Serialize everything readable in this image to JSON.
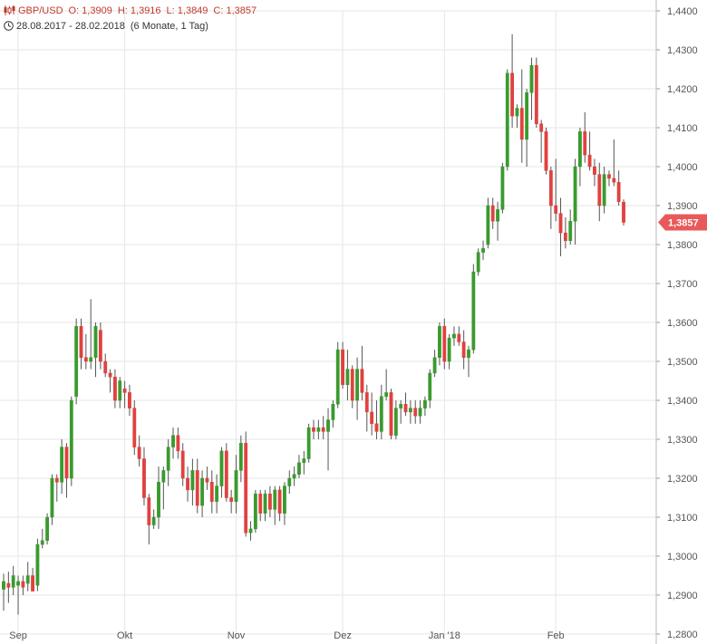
{
  "header": {
    "symbol": "GBP/USD",
    "open": "O: 1,3909",
    "high": "H: 1,3916",
    "low": "L: 1,3849",
    "close": "C: 1,3857",
    "range": "28.08.2017 - 28.02.2018",
    "period": "(6 Monate, 1 Tag)"
  },
  "colors": {
    "up": "#3a9a2e",
    "down": "#e0413f",
    "grid": "#e6e6e6",
    "last": "#e85a5a"
  },
  "chart_data": {
    "type": "candlestick",
    "ylim": [
      1.28,
      1.44
    ],
    "y_ticks": [
      "1,4400",
      "1,4300",
      "1,4200",
      "1,4100",
      "1,4000",
      "1,3900",
      "1,3800",
      "1,3700",
      "1,3600",
      "1,3500",
      "1,3400",
      "1,3300",
      "1,3200",
      "1,3100",
      "1,3000",
      "1,2900",
      "1,2800"
    ],
    "x_ticks": [
      {
        "label": "Sep",
        "index": 3
      },
      {
        "label": "Okt",
        "index": 25
      },
      {
        "label": "Nov",
        "index": 48
      },
      {
        "label": "Dez",
        "index": 70
      },
      {
        "label": "Jan '18",
        "index": 91
      },
      {
        "label": "Feb",
        "index": 114
      }
    ],
    "last_price": "1,3857",
    "last_value": 1.3857,
    "ohlc": [
      [
        1.2915,
        1.2955,
        1.286,
        1.2935
      ],
      [
        1.293,
        1.296,
        1.288,
        1.292
      ],
      [
        1.292,
        1.2975,
        1.29,
        1.295
      ],
      [
        1.2925,
        1.295,
        1.285,
        1.2935
      ],
      [
        1.2935,
        1.295,
        1.29,
        1.292
      ],
      [
        1.293,
        1.2985,
        1.291,
        1.295
      ],
      [
        1.295,
        1.297,
        1.292,
        1.291
      ],
      [
        1.2925,
        1.3045,
        1.291,
        1.303
      ],
      [
        1.303,
        1.307,
        1.302,
        1.304
      ],
      [
        1.304,
        1.311,
        1.303,
        1.31
      ],
      [
        1.31,
        1.321,
        1.308,
        1.32
      ],
      [
        1.32,
        1.321,
        1.314,
        1.319
      ],
      [
        1.319,
        1.33,
        1.316,
        1.328
      ],
      [
        1.328,
        1.329,
        1.315,
        1.32
      ],
      [
        1.32,
        1.341,
        1.318,
        1.34
      ],
      [
        1.341,
        1.361,
        1.339,
        1.359
      ],
      [
        1.359,
        1.361,
        1.348,
        1.351
      ],
      [
        1.351,
        1.357,
        1.348,
        1.35
      ],
      [
        1.35,
        1.366,
        1.348,
        1.351
      ],
      [
        1.351,
        1.36,
        1.346,
        1.359
      ],
      [
        1.358,
        1.36,
        1.348,
        1.35
      ],
      [
        1.35,
        1.352,
        1.346,
        1.347
      ],
      [
        1.347,
        1.348,
        1.342,
        1.346
      ],
      [
        1.346,
        1.348,
        1.338,
        1.34
      ],
      [
        1.34,
        1.346,
        1.338,
        1.345
      ],
      [
        1.343,
        1.345,
        1.338,
        1.342
      ],
      [
        1.342,
        1.344,
        1.336,
        1.338
      ],
      [
        1.338,
        1.34,
        1.326,
        1.328
      ],
      [
        1.328,
        1.331,
        1.323,
        1.325
      ],
      [
        1.325,
        1.328,
        1.313,
        1.315
      ],
      [
        1.315,
        1.316,
        1.303,
        1.308
      ],
      [
        1.308,
        1.312,
        1.307,
        1.31
      ],
      [
        1.31,
        1.323,
        1.307,
        1.319
      ],
      [
        1.319,
        1.323,
        1.312,
        1.322
      ],
      [
        1.322,
        1.33,
        1.318,
        1.328
      ],
      [
        1.328,
        1.333,
        1.325,
        1.331
      ],
      [
        1.331,
        1.333,
        1.325,
        1.327
      ],
      [
        1.327,
        1.329,
        1.318,
        1.32
      ],
      [
        1.32,
        1.323,
        1.314,
        1.317
      ],
      [
        1.317,
        1.325,
        1.313,
        1.322
      ],
      [
        1.322,
        1.325,
        1.311,
        1.313
      ],
      [
        1.313,
        1.322,
        1.31,
        1.32
      ],
      [
        1.32,
        1.323,
        1.317,
        1.319
      ],
      [
        1.319,
        1.322,
        1.311,
        1.314
      ],
      [
        1.314,
        1.321,
        1.311,
        1.318
      ],
      [
        1.318,
        1.328,
        1.315,
        1.327
      ],
      [
        1.327,
        1.329,
        1.314,
        1.315
      ],
      [
        1.315,
        1.317,
        1.311,
        1.314
      ],
      [
        1.314,
        1.326,
        1.311,
        1.322
      ],
      [
        1.322,
        1.331,
        1.319,
        1.329
      ],
      [
        1.329,
        1.332,
        1.305,
        1.306
      ],
      [
        1.306,
        1.309,
        1.304,
        1.307
      ],
      [
        1.307,
        1.317,
        1.306,
        1.316
      ],
      [
        1.316,
        1.317,
        1.309,
        1.311
      ],
      [
        1.311,
        1.317,
        1.309,
        1.316
      ],
      [
        1.316,
        1.318,
        1.31,
        1.312
      ],
      [
        1.312,
        1.318,
        1.308,
        1.317
      ],
      [
        1.317,
        1.318,
        1.309,
        1.311
      ],
      [
        1.311,
        1.319,
        1.308,
        1.318
      ],
      [
        1.318,
        1.322,
        1.316,
        1.32
      ],
      [
        1.32,
        1.323,
        1.318,
        1.321
      ],
      [
        1.321,
        1.326,
        1.32,
        1.324
      ],
      [
        1.324,
        1.327,
        1.321,
        1.325
      ],
      [
        1.325,
        1.334,
        1.324,
        1.333
      ],
      [
        1.333,
        1.335,
        1.33,
        1.332
      ],
      [
        1.332,
        1.335,
        1.33,
        1.333
      ],
      [
        1.333,
        1.336,
        1.33,
        1.332
      ],
      [
        1.332,
        1.338,
        1.322,
        1.335
      ],
      [
        1.335,
        1.34,
        1.333,
        1.339
      ],
      [
        1.339,
        1.355,
        1.338,
        1.353
      ],
      [
        1.353,
        1.355,
        1.343,
        1.344
      ],
      [
        1.344,
        1.353,
        1.34,
        1.348
      ],
      [
        1.348,
        1.349,
        1.338,
        1.34
      ],
      [
        1.34,
        1.351,
        1.335,
        1.348
      ],
      [
        1.348,
        1.354,
        1.34,
        1.342
      ],
      [
        1.342,
        1.344,
        1.332,
        1.337
      ],
      [
        1.337,
        1.342,
        1.331,
        1.334
      ],
      [
        1.334,
        1.34,
        1.33,
        1.332
      ],
      [
        1.332,
        1.344,
        1.33,
        1.341
      ],
      [
        1.341,
        1.348,
        1.34,
        1.342
      ],
      [
        1.342,
        1.343,
        1.33,
        1.331
      ],
      [
        1.331,
        1.34,
        1.33,
        1.338
      ],
      [
        1.338,
        1.34,
        1.334,
        1.339
      ],
      [
        1.339,
        1.342,
        1.336,
        1.337
      ],
      [
        1.337,
        1.34,
        1.334,
        1.338
      ],
      [
        1.338,
        1.34,
        1.334,
        1.336
      ],
      [
        1.336,
        1.34,
        1.334,
        1.338
      ],
      [
        1.338,
        1.341,
        1.336,
        1.34
      ],
      [
        1.34,
        1.348,
        1.338,
        1.347
      ],
      [
        1.347,
        1.353,
        1.346,
        1.351
      ],
      [
        1.351,
        1.36,
        1.349,
        1.359
      ],
      [
        1.359,
        1.361,
        1.348,
        1.35
      ],
      [
        1.35,
        1.357,
        1.348,
        1.356
      ],
      [
        1.356,
        1.359,
        1.354,
        1.357
      ],
      [
        1.357,
        1.359,
        1.354,
        1.355
      ],
      [
        1.355,
        1.358,
        1.348,
        1.351
      ],
      [
        1.351,
        1.354,
        1.346,
        1.353
      ],
      [
        1.353,
        1.375,
        1.352,
        1.373
      ],
      [
        1.373,
        1.379,
        1.372,
        1.378
      ],
      [
        1.378,
        1.381,
        1.376,
        1.379
      ],
      [
        1.38,
        1.392,
        1.379,
        1.39
      ],
      [
        1.39,
        1.392,
        1.384,
        1.386
      ],
      [
        1.386,
        1.391,
        1.381,
        1.389
      ],
      [
        1.389,
        1.401,
        1.388,
        1.4
      ],
      [
        1.4,
        1.425,
        1.399,
        1.424
      ],
      [
        1.424,
        1.434,
        1.41,
        1.413
      ],
      [
        1.413,
        1.416,
        1.41,
        1.415
      ],
      [
        1.415,
        1.425,
        1.401,
        1.407
      ],
      [
        1.407,
        1.42,
        1.4,
        1.419
      ],
      [
        1.419,
        1.428,
        1.412,
        1.426
      ],
      [
        1.426,
        1.428,
        1.41,
        1.411
      ],
      [
        1.411,
        1.412,
        1.401,
        1.409
      ],
      [
        1.409,
        1.41,
        1.398,
        1.399
      ],
      [
        1.399,
        1.4,
        1.384,
        1.39
      ],
      [
        1.39,
        1.402,
        1.386,
        1.388
      ],
      [
        1.388,
        1.392,
        1.377,
        1.383
      ],
      [
        1.383,
        1.387,
        1.379,
        1.381
      ],
      [
        1.381,
        1.389,
        1.38,
        1.386
      ],
      [
        1.386,
        1.402,
        1.38,
        1.4
      ],
      [
        1.4,
        1.41,
        1.395,
        1.409
      ],
      [
        1.409,
        1.414,
        1.401,
        1.403
      ],
      [
        1.403,
        1.409,
        1.399,
        1.4
      ],
      [
        1.4,
        1.402,
        1.395,
        1.398
      ],
      [
        1.398,
        1.401,
        1.386,
        1.39
      ],
      [
        1.39,
        1.4,
        1.388,
        1.398
      ],
      [
        1.398,
        1.399,
        1.395,
        1.397
      ],
      [
        1.397,
        1.407,
        1.395,
        1.396
      ],
      [
        1.396,
        1.399,
        1.39,
        1.391
      ],
      [
        1.3909,
        1.3916,
        1.3849,
        1.3857
      ]
    ]
  }
}
